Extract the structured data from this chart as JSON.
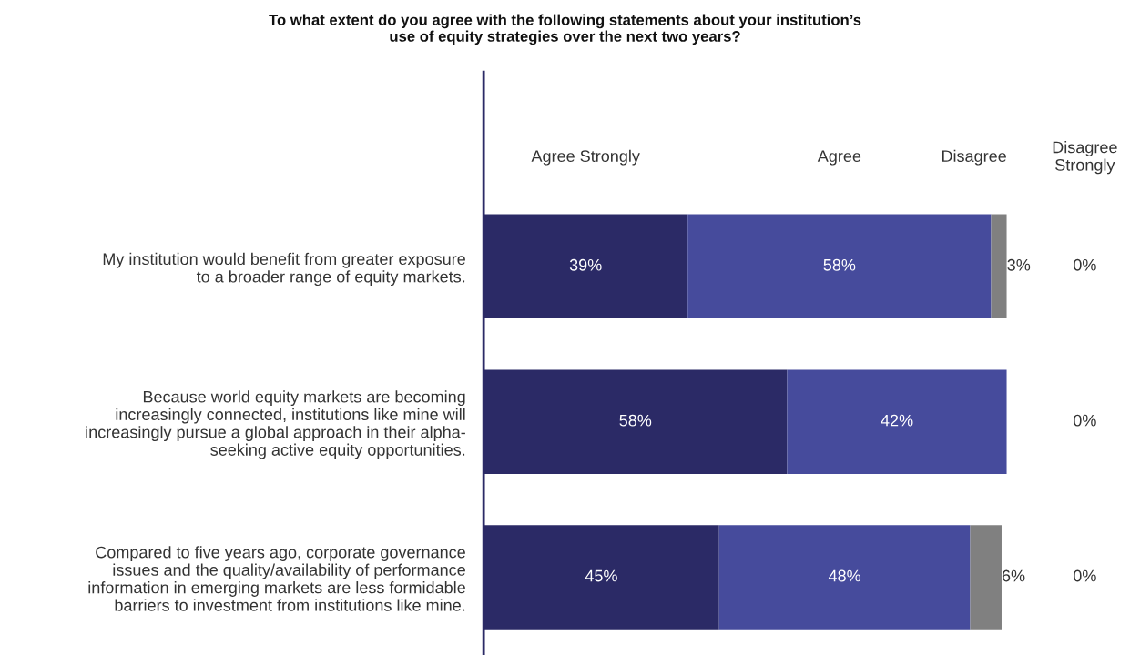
{
  "chart_data": {
    "type": "bar",
    "orientation": "horizontal",
    "stacked": true,
    "title": "To what extent do you agree with the following statements about your institution’s\nuse of equity strategies over the next two years?",
    "categories": [
      "My institution would benefit from greater exposure\nto a broader range of equity markets.",
      "Because world equity markets are becoming\nincreasingly connected, institutions like mine will\nincreasingly pursue a global approach in their alpha-\nseeking active equity opportunities.",
      "Compared to five years ago, corporate governance\nissues and the quality/availability of performance\ninformation in emerging markets are less formidable\nbarriers to investment from institutions like mine."
    ],
    "series": [
      {
        "name": "Agree Strongly",
        "color": "#2b2a66",
        "values": [
          39,
          58,
          45
        ],
        "value_labels": [
          "39%",
          "58%",
          "45%"
        ]
      },
      {
        "name": "Agree",
        "color": "#464b9c",
        "values": [
          58,
          42,
          48
        ],
        "value_labels": [
          "58%",
          "42%",
          "48%"
        ]
      },
      {
        "name": "Disagree",
        "color": "#808080",
        "values": [
          3,
          0,
          6
        ],
        "value_labels": [
          "3%",
          null,
          "6%"
        ]
      },
      {
        "name": "Disagree Strongly",
        "color": "#333333",
        "values": [
          0,
          0,
          0
        ],
        "value_labels": [
          "0%",
          "0%",
          "0%"
        ]
      }
    ],
    "tick_labels": "y",
    "legend": "top",
    "grid": false
  }
}
